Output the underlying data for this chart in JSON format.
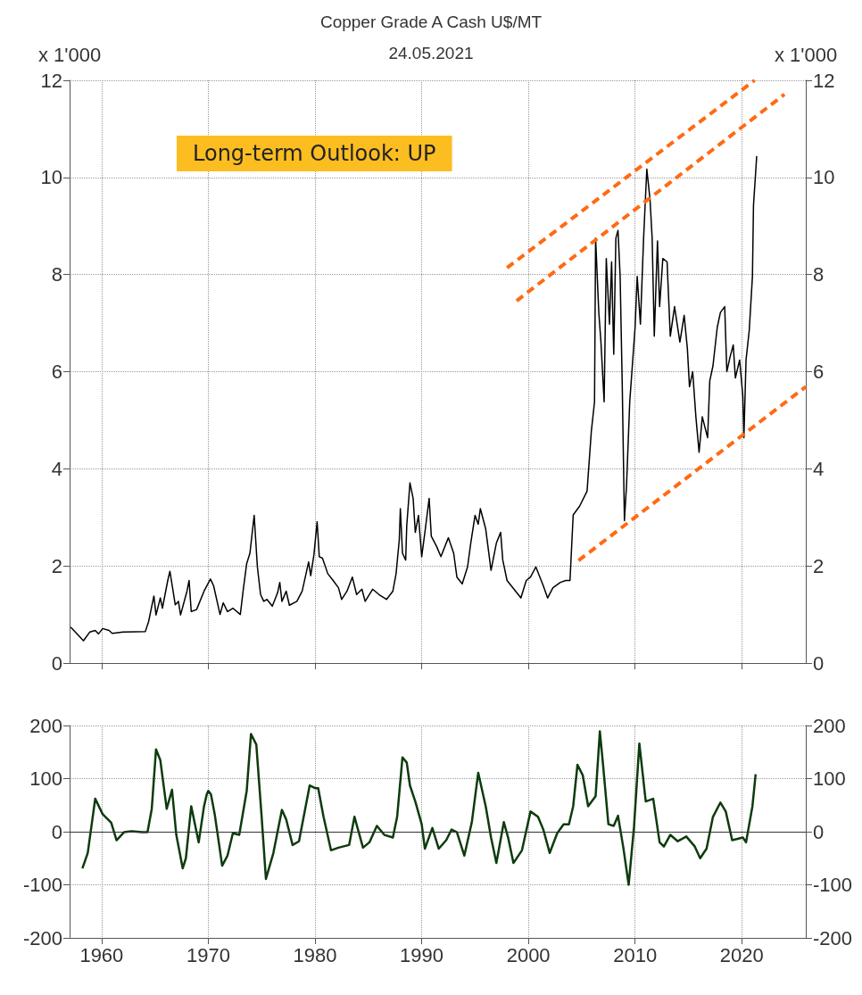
{
  "chart_data": [
    {
      "type": "line",
      "title": "Copper Grade A Cash U$/MT",
      "subtitle": "24.05.2021",
      "ylabel": "x 1'000",
      "y2label": "x 1'000",
      "annotations": [
        "Long-term Outlook: UP"
      ],
      "xlim": [
        1957,
        2026
      ],
      "xticks": [
        1960,
        1970,
        1980,
        1990,
        2000,
        2010,
        2020
      ],
      "ylim": [
        0,
        12
      ],
      "yticks": [
        0,
        2,
        4,
        6,
        8,
        10,
        12
      ],
      "y2lim": [
        0,
        12
      ],
      "y2ticks": [
        0,
        2,
        4,
        6,
        8,
        10,
        12
      ],
      "tick_labels": "y",
      "grid": true,
      "series": [
        {
          "color": "#000000",
          "x": [
            1957.1,
            1958.3,
            1958.9,
            1959.4,
            1959.7,
            1960.1,
            1960.7,
            1961.0,
            1962.0,
            1964.1,
            1964.4,
            1964.9,
            1965.1,
            1965.5,
            1965.7,
            1966.2,
            1966.4,
            1966.7,
            1966.9,
            1967.2,
            1967.4,
            1968.0,
            1968.2,
            1968.4,
            1968.9,
            1969.6,
            1970.2,
            1970.5,
            1971.1,
            1971.4,
            1971.8,
            1972.3,
            1973.0,
            1973.3,
            1973.6,
            1973.9,
            1974.3,
            1974.6,
            1974.9,
            1975.2,
            1975.5,
            1976.0,
            1976.5,
            1976.7,
            1976.9,
            1977.3,
            1977.6,
            1978.3,
            1978.8,
            1979.4,
            1979.6,
            1979.9,
            1980.2,
            1980.4,
            1980.7,
            1981.2,
            1981.7,
            1982.2,
            1982.5,
            1983.0,
            1983.5,
            1983.9,
            1984.4,
            1984.7,
            1985.4,
            1986.0,
            1986.7,
            1987.3,
            1987.6,
            1987.9,
            1988.0,
            1988.2,
            1988.5,
            1988.6,
            1988.9,
            1989.2,
            1989.4,
            1989.7,
            1990.0,
            1990.3,
            1990.7,
            1990.9,
            1991.4,
            1991.8,
            1992.5,
            1993.0,
            1993.3,
            1993.8,
            1994.3,
            1994.6,
            1995.0,
            1995.3,
            1995.5,
            1996.0,
            1996.5,
            1997.0,
            1997.4,
            1997.6,
            1998.0,
            1998.8,
            1999.3,
            1999.8,
            2000.2,
            2000.7,
            2001.4,
            2001.8,
            2002.3,
            2003.0,
            2003.5,
            2003.9,
            2004.2,
            2004.8,
            2005.5,
            2005.9,
            2006.2,
            2006.3,
            2006.6,
            2006.8,
            2007.1,
            2007.3,
            2007.6,
            2007.8,
            2008.0,
            2008.2,
            2008.4,
            2008.6,
            2008.8,
            2009.0,
            2009.2,
            2009.5,
            2010.0,
            2010.2,
            2010.5,
            2010.8,
            2011.1,
            2011.4,
            2011.6,
            2011.8,
            2012.1,
            2012.3,
            2012.6,
            2013.0,
            2013.3,
            2013.7,
            2014.2,
            2014.6,
            2014.9,
            2015.1,
            2015.4,
            2015.7,
            2016.0,
            2016.3,
            2016.8,
            2017.0,
            2017.3,
            2017.7,
            2018.0,
            2018.4,
            2018.6,
            2018.9,
            2019.2,
            2019.4,
            2019.8,
            2020.1,
            2020.2,
            2020.4,
            2020.7,
            2021.0,
            2021.1,
            2021.3,
            2021.4
          ],
          "values": [
            0.74,
            0.46,
            0.64,
            0.67,
            0.6,
            0.71,
            0.67,
            0.61,
            0.64,
            0.65,
            0.85,
            1.38,
            0.99,
            1.34,
            1.13,
            1.7,
            1.89,
            1.48,
            1.2,
            1.27,
            0.99,
            1.48,
            1.7,
            1.06,
            1.1,
            1.48,
            1.73,
            1.59,
            1.0,
            1.24,
            1.06,
            1.13,
            1.0,
            1.55,
            2.05,
            2.26,
            3.04,
            1.98,
            1.41,
            1.27,
            1.31,
            1.17,
            1.45,
            1.66,
            1.27,
            1.48,
            1.19,
            1.27,
            1.48,
            2.08,
            1.8,
            2.23,
            2.91,
            2.19,
            2.16,
            1.84,
            1.7,
            1.55,
            1.31,
            1.48,
            1.77,
            1.41,
            1.52,
            1.27,
            1.52,
            1.41,
            1.31,
            1.48,
            1.84,
            2.54,
            3.18,
            2.26,
            2.12,
            2.83,
            3.71,
            3.39,
            2.69,
            3.04,
            2.19,
            2.69,
            3.39,
            2.61,
            2.4,
            2.19,
            2.58,
            2.26,
            1.77,
            1.63,
            1.98,
            2.47,
            3.04,
            2.86,
            3.18,
            2.76,
            1.91,
            2.47,
            2.69,
            2.12,
            1.7,
            1.48,
            1.34,
            1.7,
            1.77,
            1.98,
            1.59,
            1.34,
            1.55,
            1.66,
            1.7,
            1.7,
            3.05,
            3.23,
            3.54,
            4.77,
            5.38,
            8.75,
            7.22,
            6.61,
            5.38,
            8.33,
            6.98,
            8.26,
            6.36,
            8.75,
            8.91,
            7.96,
            5.69,
            2.93,
            3.66,
            5.38,
            6.91,
            7.96,
            6.98,
            8.75,
            10.17,
            9.55,
            8.75,
            6.73,
            8.69,
            7.34,
            8.33,
            8.26,
            6.73,
            7.34,
            6.61,
            7.16,
            6.48,
            5.69,
            6.0,
            5.07,
            4.34,
            5.07,
            4.64,
            5.81,
            6.12,
            6.91,
            7.22,
            7.34,
            6.0,
            6.3,
            6.55,
            5.87,
            6.24,
            5.5,
            4.64,
            6.24,
            6.85,
            7.96,
            9.43,
            10.1,
            10.44
          ]
        },
        {
          "color": "#ff6a13",
          "line_style": "dashed",
          "x": [
            1998.0,
            2021.2
          ],
          "values": [
            8.14,
            12
          ]
        },
        {
          "color": "#ff6a13",
          "line_style": "dashed",
          "x": [
            1998.9,
            2024.0
          ],
          "values": [
            7.46,
            11.71
          ]
        },
        {
          "color": "#ff6a13",
          "line_style": "dashed",
          "x": [
            2004.7,
            2026
          ],
          "values": [
            2.11,
            5.69
          ]
        }
      ]
    },
    {
      "type": "line",
      "xlim": [
        1957,
        2026
      ],
      "xticks": [
        1960,
        1970,
        1980,
        1990,
        2000,
        2010,
        2020
      ],
      "ylim": [
        -200,
        200
      ],
      "yticks": [
        -200,
        -100,
        0,
        100,
        200
      ],
      "y2lim": [
        -200,
        200
      ],
      "y2ticks": [
        -200,
        -100,
        0,
        100,
        200
      ],
      "grid": true,
      "ref_lines": [
        {
          "axis": "y",
          "value": 0,
          "color": "#333333"
        }
      ],
      "series": [
        {
          "color": "#0d3b0d",
          "x": [
            1958.2,
            1958.7,
            1959.4,
            1960.1,
            1960.9,
            1961.4,
            1962.1,
            1962.8,
            1963.8,
            1964.3,
            1964.7,
            1965.1,
            1965.5,
            1966.1,
            1966.6,
            1967.0,
            1967.6,
            1967.9,
            1968.4,
            1969.1,
            1969.6,
            1969.85,
            1970.0,
            1970.25,
            1970.6,
            1971.3,
            1971.8,
            1972.3,
            1972.9,
            1973.6,
            1974.0,
            1974.5,
            1975.0,
            1975.4,
            1976.1,
            1976.9,
            1977.3,
            1977.9,
            1978.5,
            1979.5,
            1980.0,
            1980.3,
            1980.8,
            1981.5,
            1982.2,
            1983.2,
            1983.7,
            1984.5,
            1985.1,
            1985.8,
            1986.5,
            1987.3,
            1987.7,
            1988.2,
            1988.6,
            1988.9,
            1989.4,
            1990.0,
            1990.3,
            1991.0,
            1991.6,
            1992.3,
            1992.8,
            1993.3,
            1994.0,
            1994.7,
            1995.3,
            1996.0,
            1996.5,
            1997.0,
            1997.7,
            1998.1,
            1998.6,
            1999.4,
            2000.2,
            2000.9,
            2001.4,
            2002.0,
            2002.7,
            2003.3,
            2003.8,
            2004.2,
            2004.6,
            2005.1,
            2005.6,
            2006.3,
            2006.7,
            2007.0,
            2007.5,
            2008.0,
            2008.4,
            2008.9,
            2009.4,
            2009.9,
            2010.4,
            2011.0,
            2011.7,
            2012.3,
            2012.7,
            2013.3,
            2014.0,
            2014.8,
            2015.6,
            2016.1,
            2016.7,
            2017.3,
            2018.0,
            2018.5,
            2019.1,
            2019.7,
            2020.1,
            2020.4,
            2021.0,
            2021.3
          ],
          "values": [
            -69,
            -40,
            62,
            33,
            17,
            -16,
            -1,
            1,
            -1,
            -1,
            43,
            155,
            135,
            43,
            79,
            -6,
            -69,
            -50,
            48,
            -20,
            48,
            70,
            77,
            70,
            33,
            -64,
            -45,
            -3,
            -6,
            77,
            184,
            164,
            28,
            -89,
            -40,
            41,
            23,
            -25,
            -18,
            87,
            82,
            82,
            28,
            -35,
            -30,
            -25,
            28,
            -30,
            -20,
            11,
            -6,
            -11,
            28,
            140,
            130,
            87,
            57,
            14,
            -32,
            7,
            -32,
            -16,
            4,
            -1,
            -45,
            18,
            111,
            48,
            -11,
            -59,
            18,
            -11,
            -59,
            -35,
            38,
            28,
            4,
            -40,
            -3,
            14,
            14,
            48,
            126,
            106,
            48,
            67,
            189,
            126,
            14,
            11,
            30,
            -30,
            -100,
            9,
            166,
            57,
            62,
            -20,
            -28,
            -6,
            -18,
            -9,
            -28,
            -50,
            -32,
            28,
            55,
            38,
            -16,
            -13,
            -11,
            -20,
            48,
            108
          ]
        }
      ]
    }
  ]
}
